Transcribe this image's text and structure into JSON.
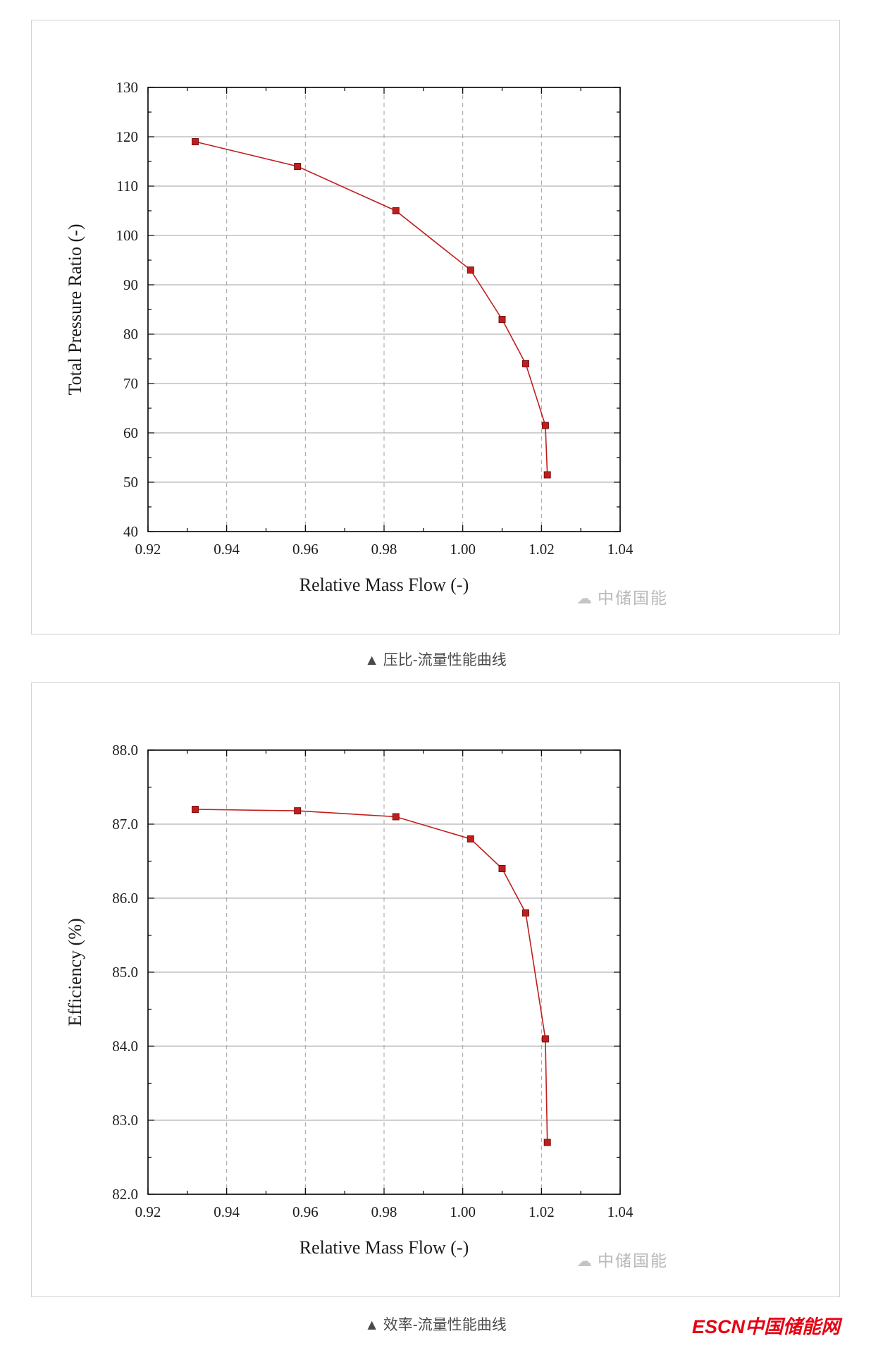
{
  "captions": {
    "chart1": "▲ 压比-流量性能曲线",
    "chart2": "▲ 效率-流量性能曲线"
  },
  "watermark": {
    "icon": "☁",
    "text": "中储国能"
  },
  "footer_logo": "ESCN中国储能网",
  "colors": {
    "series_red": "#c01e1e",
    "grid_gray": "#a0a0a0",
    "escn_red": "#e60012"
  },
  "chart_data": [
    {
      "type": "line",
      "title": "",
      "xlabel": "Relative Mass Flow (-)",
      "ylabel": "Total Pressure Ratio (-)",
      "xlim": [
        0.92,
        1.04
      ],
      "ylim": [
        40,
        130
      ],
      "x_ticks": [
        0.92,
        0.94,
        0.96,
        0.98,
        1.0,
        1.02,
        1.04
      ],
      "x_tick_labels": [
        "0.92",
        "0.94",
        "0.96",
        "0.98",
        "1.00",
        "1.02",
        "1.04"
      ],
      "y_ticks": [
        40,
        50,
        60,
        70,
        80,
        90,
        100,
        110,
        120,
        130
      ],
      "y_tick_labels": [
        "40",
        "50",
        "60",
        "70",
        "80",
        "90",
        "100",
        "110",
        "120",
        "130"
      ],
      "grid": {
        "horizontal": "solid",
        "vertical": "dashed"
      },
      "legend": "none",
      "series": [
        {
          "name": "Total Pressure Ratio",
          "color": "#c01e1e",
          "marker": "square",
          "points": [
            [
              0.932,
              119
            ],
            [
              0.958,
              114
            ],
            [
              0.983,
              105
            ],
            [
              1.002,
              93
            ],
            [
              1.01,
              83
            ],
            [
              1.016,
              74
            ],
            [
              1.021,
              61.5
            ],
            [
              1.0215,
              51.5
            ]
          ]
        }
      ]
    },
    {
      "type": "line",
      "title": "",
      "xlabel": "Relative Mass Flow (-)",
      "ylabel": "Efficiency (%)",
      "xlim": [
        0.92,
        1.04
      ],
      "ylim": [
        82,
        88
      ],
      "x_ticks": [
        0.92,
        0.94,
        0.96,
        0.98,
        1.0,
        1.02,
        1.04
      ],
      "x_tick_labels": [
        "0.92",
        "0.94",
        "0.96",
        "0.98",
        "1.00",
        "1.02",
        "1.04"
      ],
      "y_ticks": [
        82,
        83,
        84,
        85,
        86,
        87,
        88
      ],
      "y_tick_labels": [
        "82.0",
        "83.0",
        "84.0",
        "85.0",
        "86.0",
        "87.0",
        "88.0"
      ],
      "grid": {
        "horizontal": "solid",
        "vertical": "dashed"
      },
      "legend": "none",
      "series": [
        {
          "name": "Efficiency",
          "color": "#c01e1e",
          "marker": "square",
          "points": [
            [
              0.932,
              87.2
            ],
            [
              0.958,
              87.18
            ],
            [
              0.983,
              87.1
            ],
            [
              1.002,
              86.8
            ],
            [
              1.01,
              86.4
            ],
            [
              1.016,
              85.8
            ],
            [
              1.021,
              84.1
            ],
            [
              1.0215,
              82.7
            ]
          ]
        }
      ]
    }
  ]
}
